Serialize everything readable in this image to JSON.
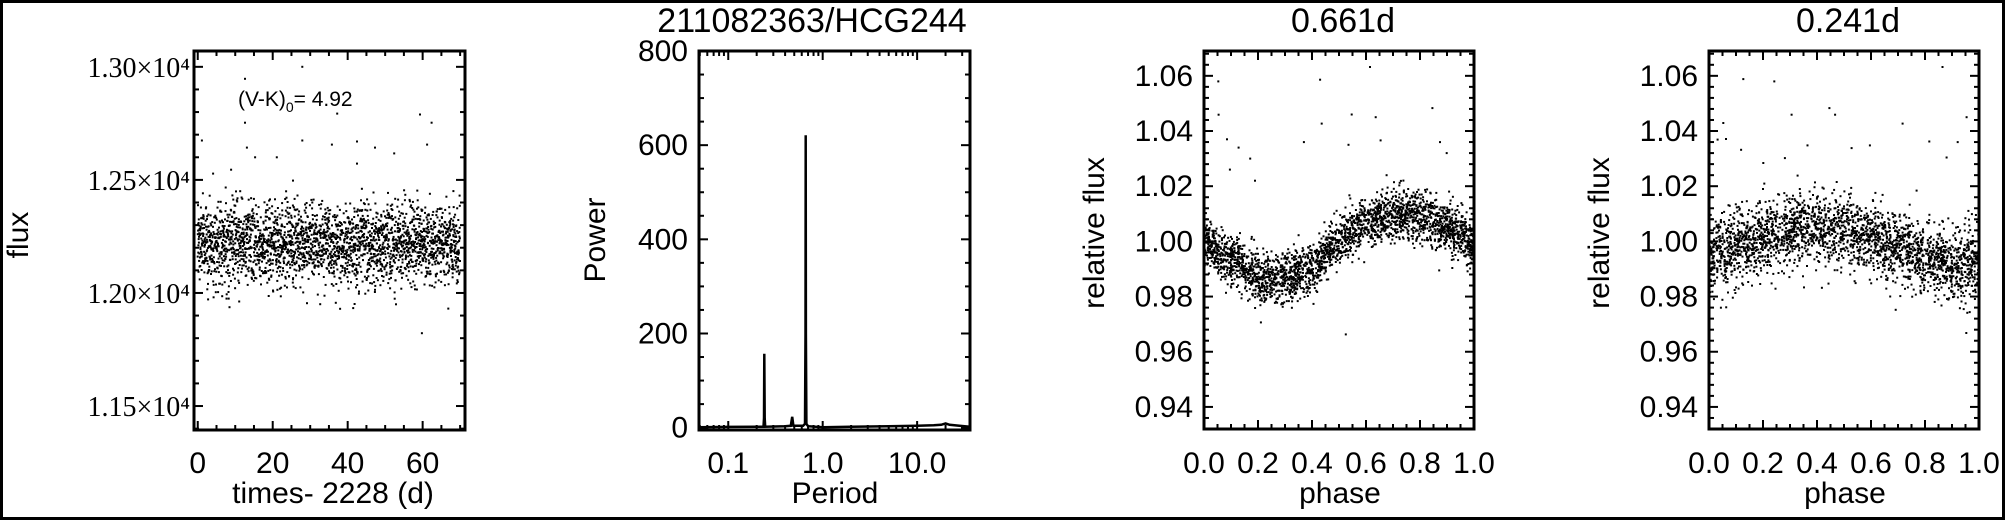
{
  "colors": {
    "ink": "#000000",
    "background": "#ffffff"
  },
  "chart_data": [
    {
      "type": "scatter",
      "title": "",
      "xlabel": "times- 2228 (d)",
      "ylabel": "flux",
      "xlim": [
        -1,
        71.3
      ],
      "ylim": [
        11394,
        13070
      ],
      "x_ticks": [
        0,
        20,
        40,
        60
      ],
      "x_tick_labels": [
        "0",
        "20",
        "40",
        "60"
      ],
      "y_ticks": [
        11500,
        12000,
        12500,
        13000
      ],
      "y_tick_labels": [
        "1.15×10⁴",
        "1.20×10⁴",
        "1.25×10⁴",
        "1.30×10⁴"
      ],
      "annotation": {
        "before": "(V-K)",
        "subscript": "0",
        "after": "= 4.92"
      },
      "grid": false,
      "bulk": {
        "x_range": [
          0,
          70
        ],
        "mean_flux": 12220,
        "flux_sigma": 90,
        "n_points": 2600
      },
      "outliers": [
        [
          1.1,
          12674
        ],
        [
          12.6,
          12947
        ],
        [
          12.6,
          12753
        ],
        [
          13.1,
          12643
        ],
        [
          27.9,
          13000
        ],
        [
          27.9,
          12674
        ],
        [
          37.2,
          12793
        ],
        [
          59.3,
          12789
        ],
        [
          62.4,
          12753
        ],
        [
          59.8,
          11822
        ],
        [
          42.5,
          12670
        ],
        [
          35.8,
          12656
        ],
        [
          47.3,
          12643
        ],
        [
          21.1,
          12600
        ],
        [
          15.3,
          12600
        ],
        [
          52.4,
          12617
        ],
        [
          61.2,
          12656
        ],
        [
          42.5,
          12572
        ],
        [
          4.1,
          12528
        ],
        [
          8.9,
          12545
        ],
        [
          25.4,
          12497
        ]
      ]
    },
    {
      "type": "line",
      "title": "211082363/HCG244",
      "xlabel": "Period",
      "ylabel": "Power",
      "x_scale": "log",
      "xlim": [
        0.049,
        36.3
      ],
      "ylim": [
        -5,
        800
      ],
      "x_ticks": [
        0.1,
        1.0,
        10.0
      ],
      "x_tick_labels": [
        "0.1",
        "1.0",
        "10.0"
      ],
      "y_ticks": [
        0,
        200,
        400,
        600,
        800
      ],
      "y_tick_labels": [
        "0",
        "200",
        "400",
        "600",
        "800"
      ],
      "grid": false,
      "points": [
        [
          0.049,
          1
        ],
        [
          0.1,
          1.5
        ],
        [
          0.2,
          2
        ],
        [
          0.236,
          2
        ],
        [
          0.239,
          20
        ],
        [
          0.241,
          157
        ],
        [
          0.243,
          20
        ],
        [
          0.246,
          2
        ],
        [
          0.4,
          3
        ],
        [
          0.46,
          4
        ],
        [
          0.475,
          23
        ],
        [
          0.49,
          4
        ],
        [
          0.62,
          4
        ],
        [
          0.65,
          8
        ],
        [
          0.658,
          200
        ],
        [
          0.661,
          621
        ],
        [
          0.664,
          200
        ],
        [
          0.672,
          8
        ],
        [
          0.7,
          3
        ],
        [
          1.0,
          1
        ],
        [
          2.0,
          2
        ],
        [
          5.0,
          3
        ],
        [
          10.0,
          4
        ],
        [
          15.0,
          5
        ],
        [
          18,
          6
        ],
        [
          20,
          9
        ],
        [
          22,
          6
        ],
        [
          28,
          4
        ],
        [
          36.3,
          2
        ]
      ]
    },
    {
      "type": "scatter",
      "title": "0.661d",
      "xlabel": "phase",
      "ylabel": "relative flux",
      "xlim": [
        0,
        1
      ],
      "ylim": [
        0.932,
        1.069
      ],
      "x_ticks": [
        0,
        0.2,
        0.4,
        0.6,
        0.8,
        1.0
      ],
      "x_tick_labels": [
        "0.0",
        "0.2",
        "0.4",
        "0.6",
        "0.8",
        "1.0"
      ],
      "y_ticks": [
        0.94,
        0.96,
        0.98,
        1.0,
        1.02,
        1.04,
        1.06
      ],
      "y_tick_labels": [
        "0.94",
        "0.96",
        "0.98",
        "1.00",
        "1.02",
        "1.04",
        "1.06"
      ],
      "grid": false,
      "binned_trend": {
        "phase": [
          0,
          0.1,
          0.2,
          0.3,
          0.4,
          0.5,
          0.6,
          0.7,
          0.8,
          0.9,
          1.0
        ],
        "flux": [
          1.0,
          0.993,
          0.987,
          0.986,
          0.991,
          1.0,
          1.007,
          1.01,
          1.009,
          1.005,
          1.0
        ],
        "sigma": 0.0045,
        "n_points": 2600
      },
      "outliers": [
        [
          0.053,
          1.058
        ],
        [
          0.054,
          1.0459
        ],
        [
          0.615,
          1.0632
        ],
        [
          0.43,
          1.0586
        ],
        [
          0.436,
          1.0427
        ],
        [
          0.547,
          1.046
        ],
        [
          0.636,
          1.045
        ],
        [
          0.846,
          1.0483
        ],
        [
          0.874,
          1.036
        ],
        [
          0.899,
          1.032
        ],
        [
          0.525,
          0.9663
        ],
        [
          0.871,
          0.9895
        ],
        [
          0.535,
          1.035
        ],
        [
          0.085,
          1.037
        ],
        [
          0.128,
          1.034
        ],
        [
          0.171,
          1.03
        ],
        [
          0.37,
          1.036
        ],
        [
          0.654,
          1.0366
        ],
        [
          0.189,
          1.022
        ],
        [
          0.096,
          1.026
        ]
      ]
    },
    {
      "type": "scatter",
      "title": "0.241d",
      "xlabel": "phase",
      "ylabel": "relative flux",
      "xlim": [
        0,
        1
      ],
      "ylim": [
        0.932,
        1.069
      ],
      "x_ticks": [
        0,
        0.2,
        0.4,
        0.6,
        0.8,
        1.0
      ],
      "x_tick_labels": [
        "0.0",
        "0.2",
        "0.4",
        "0.6",
        "0.8",
        "1.0"
      ],
      "y_ticks": [
        0.94,
        0.96,
        0.98,
        1.0,
        1.02,
        1.04,
        1.06
      ],
      "y_tick_labels": [
        "0.94",
        "0.96",
        "0.98",
        "1.00",
        "1.02",
        "1.04",
        "1.06"
      ],
      "grid": false,
      "binned_trend": {
        "phase": [
          0,
          0.1,
          0.2,
          0.3,
          0.4,
          0.5,
          0.6,
          0.7,
          0.8,
          0.9,
          1.0
        ],
        "flux": [
          0.995,
          0.997,
          1.001,
          1.004,
          1.005,
          1.004,
          1.001,
          0.998,
          0.994,
          0.991,
          0.994
        ],
        "sigma": 0.0065,
        "n_points": 2600
      },
      "outliers": [
        [
          0.127,
          1.0588
        ],
        [
          0.242,
          1.058
        ],
        [
          0.865,
          1.0632
        ],
        [
          0.446,
          1.0483
        ],
        [
          0.467,
          1.0459
        ],
        [
          0.306,
          1.0459
        ],
        [
          0.053,
          1.0429
        ],
        [
          0.717,
          1.0427
        ],
        [
          0.954,
          1.045
        ],
        [
          0.953,
          0.9668
        ],
        [
          0.032,
          1.0369
        ],
        [
          0.063,
          1.0371
        ],
        [
          0.365,
          1.0348
        ],
        [
          0.596,
          1.0348
        ],
        [
          0.816,
          1.0362
        ],
        [
          0.921,
          1.036
        ],
        [
          0.528,
          1.0338
        ],
        [
          0.119,
          1.0332
        ],
        [
          0.88,
          1.0304
        ],
        [
          0.281,
          1.0302
        ],
        [
          0.201,
          1.0284
        ]
      ]
    }
  ]
}
